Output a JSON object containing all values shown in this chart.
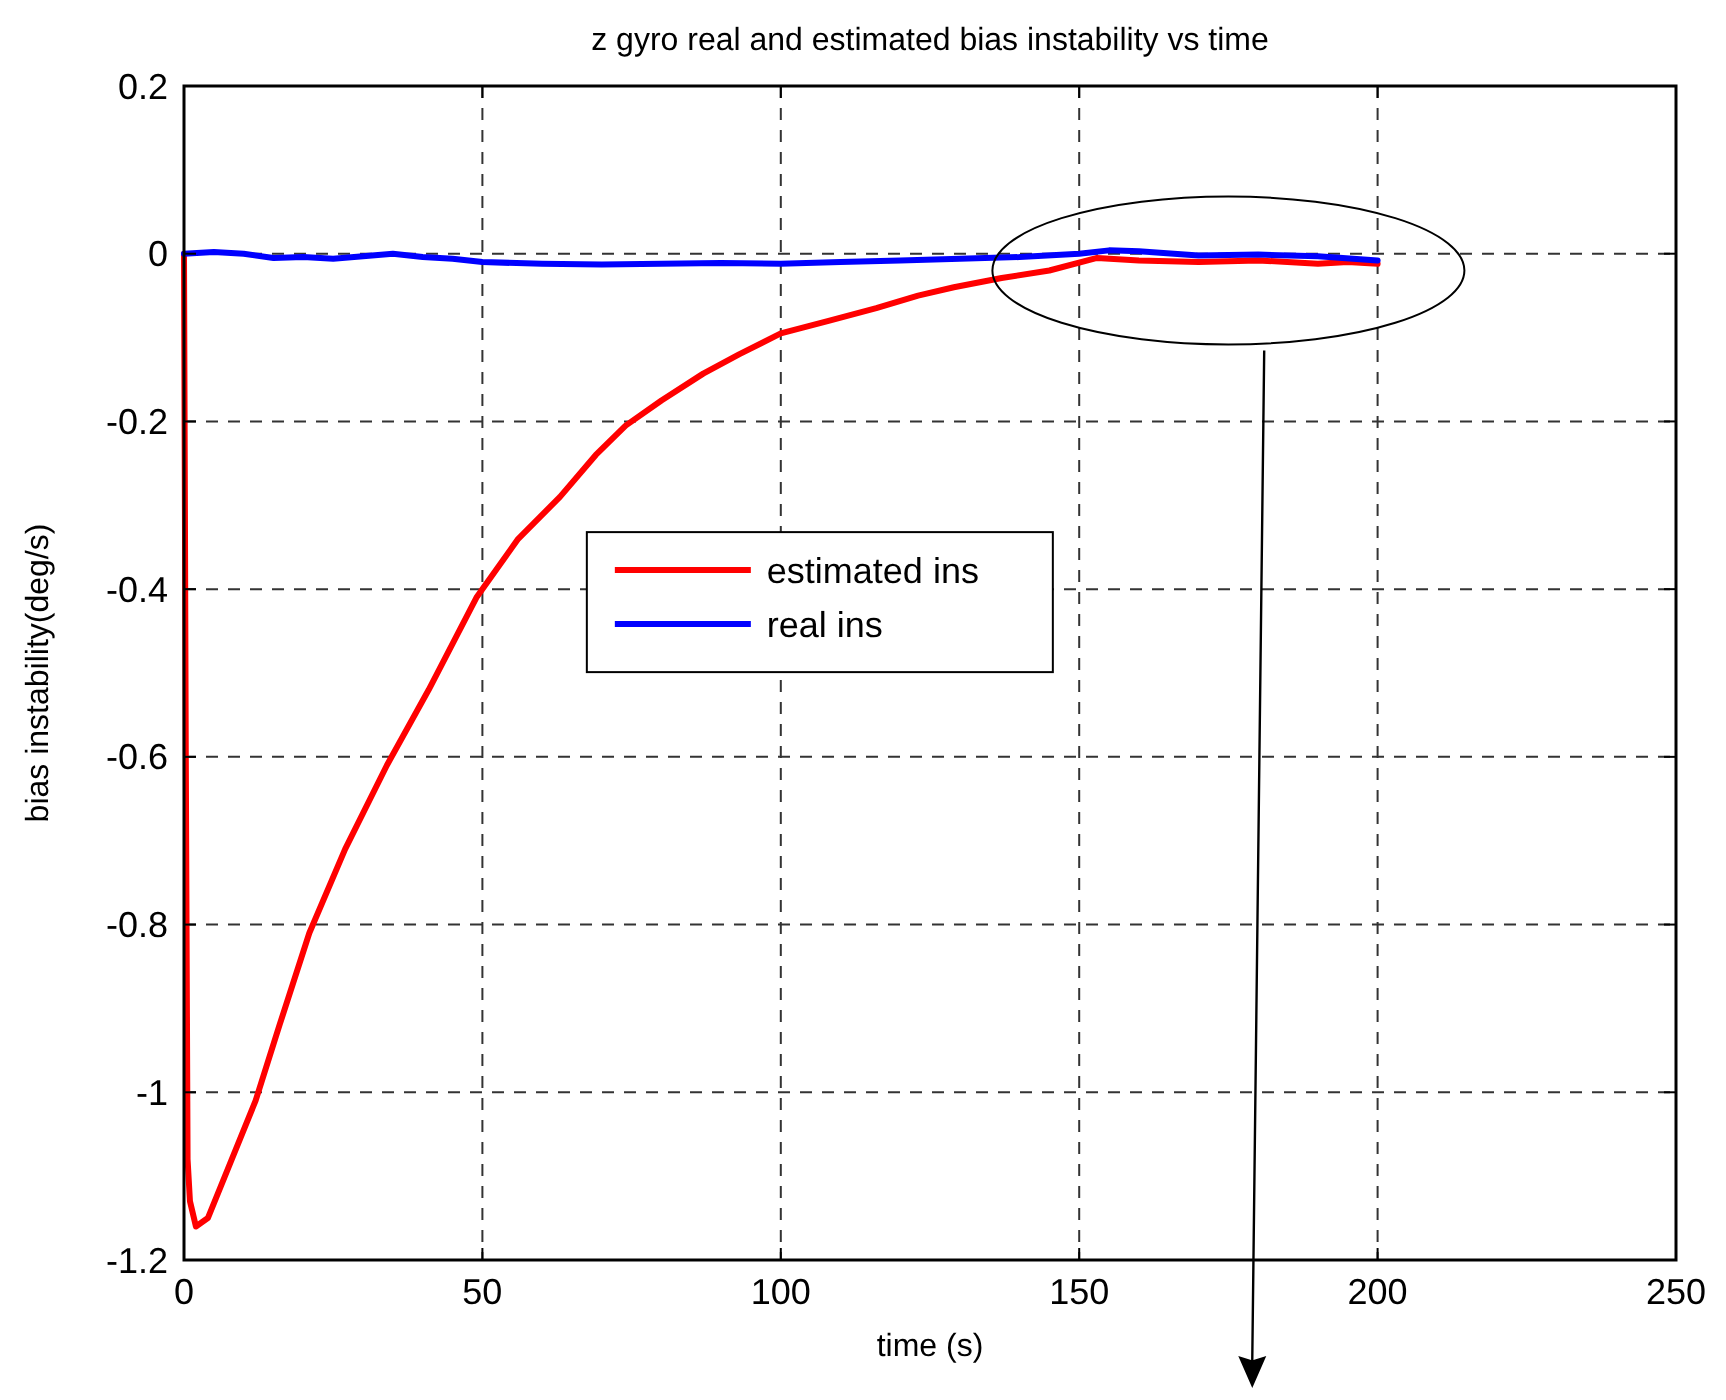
{
  "chart_data": {
    "type": "line",
    "title": "z gyro real and estimated bias instability vs time",
    "xlabel": "time (s)",
    "ylabel": "bias instability(deg/s)",
    "xlim": [
      0,
      250
    ],
    "xticks": [
      0,
      50,
      100,
      150,
      200,
      250
    ],
    "ylim": [
      -1.2,
      0.2
    ],
    "yticks": [
      -1.2,
      -1,
      -0.8,
      -0.6,
      -0.4,
      -0.2,
      0,
      0.2
    ],
    "grid": true,
    "legend": "center",
    "line_style": "solid",
    "series": [
      {
        "name": "estimated ins",
        "color": "#ff0000",
        "x": [
          0,
          0.3,
          0.6,
          1,
          2,
          4,
          8,
          12,
          16,
          21,
          27,
          34,
          41,
          49,
          56,
          63,
          69,
          74,
          80,
          87,
          93,
          100,
          108,
          116,
          123,
          129,
          137,
          145,
          153,
          160,
          170,
          180,
          190,
          195,
          200
        ],
        "values": [
          0,
          -0.6,
          -1.08,
          -1.13,
          -1.16,
          -1.15,
          -1.08,
          -1.01,
          -0.92,
          -0.81,
          -0.71,
          -0.61,
          -0.52,
          -0.41,
          -0.34,
          -0.29,
          -0.24,
          -0.205,
          -0.175,
          -0.143,
          -0.12,
          -0.095,
          -0.08,
          -0.065,
          -0.05,
          -0.04,
          -0.029,
          -0.02,
          -0.005,
          -0.008,
          -0.01,
          -0.008,
          -0.012,
          -0.01,
          -0.012
        ]
      },
      {
        "name": "real ins",
        "color": "#0000ff",
        "x": [
          0,
          5,
          10,
          15,
          20,
          25,
          30,
          35,
          40,
          45,
          50,
          60,
          70,
          80,
          90,
          100,
          110,
          120,
          130,
          140,
          150,
          155,
          160,
          170,
          180,
          190,
          200
        ],
        "values": [
          0,
          0.002,
          0,
          -0.005,
          -0.004,
          -0.006,
          -0.003,
          0,
          -0.004,
          -0.006,
          -0.01,
          -0.012,
          -0.013,
          -0.012,
          -0.011,
          -0.012,
          -0.01,
          -0.008,
          -0.006,
          -0.004,
          0.0,
          0.004,
          0.003,
          -0.002,
          -0.001,
          -0.003,
          -0.008
        ]
      }
    ]
  }
}
